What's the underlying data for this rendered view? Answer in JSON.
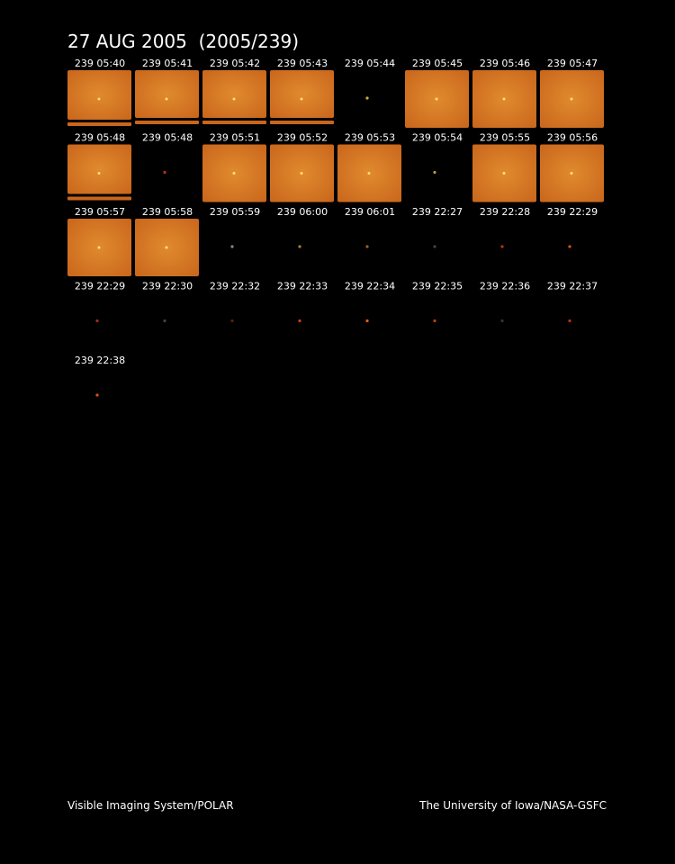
{
  "header": {
    "title": "27 AUG 2005  (2005/239)"
  },
  "frames": [
    "239 05:40",
    "239 05:41",
    "239 05:42",
    "239 05:43",
    "239 05:44",
    "239 05:45",
    "239 05:46",
    "239 05:47",
    "239 05:48",
    "239 05:48",
    "239 05:51",
    "239 05:52",
    "239 05:53",
    "239 05:54",
    "239 05:55",
    "239 05:56",
    "239 05:57",
    "239 05:58",
    "239 05:59",
    "239 06:00",
    "239 06:01",
    "239 22:27",
    "239 22:28",
    "239 22:29",
    "239 22:29",
    "239 22:30",
    "239 22:32",
    "239 22:33",
    "239 22:34",
    "239 22:35",
    "239 22:36",
    "239 22:37",
    "239 22:38"
  ],
  "footer": {
    "left": "Visible Imaging System/POLAR",
    "right": "The University of Iowa/NASA-GSFC"
  }
}
